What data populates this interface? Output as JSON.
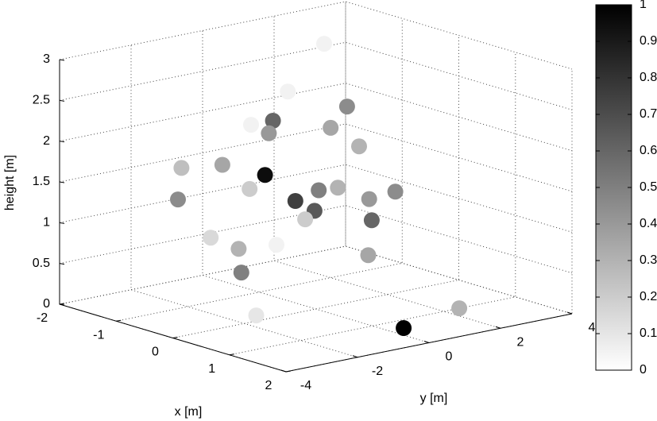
{
  "chart_data": {
    "type": "scatter3d",
    "xlabel": "x [m]",
    "ylabel": "y [m]",
    "zlabel": "height [m]",
    "xlim": [
      -2,
      2
    ],
    "ylim": [
      -4,
      4
    ],
    "zlim": [
      0,
      3
    ],
    "xticks": [
      -2,
      -1,
      0,
      1,
      2
    ],
    "yticks": [
      -4,
      -2,
      0,
      2,
      4
    ],
    "zticks": [
      0,
      0.5,
      1,
      1.5,
      2,
      2.5,
      3
    ],
    "grid": true,
    "colormap": [
      "#ffffff",
      "#000000"
    ],
    "clim": [
      0,
      1
    ],
    "cticks": [
      0,
      0.1,
      0.2,
      0.3,
      0.4,
      0.5,
      0.6,
      0.7,
      0.8,
      0.9,
      1
    ],
    "x": [
      -1.04,
      -1.17,
      0.56,
      -0.1,
      0.72,
      -1.02,
      -1.24,
      0.67,
      -0.27,
      -1.41,
      -0.17,
      0.7,
      -1.57,
      0.1,
      -1.06,
      1.95,
      0.76,
      -0.78,
      1.62,
      -1.11,
      0.78,
      -0.65,
      1.08,
      -1.35,
      0.75,
      -0.38,
      -0.2,
      1.3,
      1.0
    ],
    "y": [
      1.88,
      1.07,
      -0.01,
      -1.04,
      -2.95,
      2.03,
      0.65,
      0.15,
      -3.33,
      -0.38,
      -1.15,
      -2.96,
      -1.37,
      -0.73,
      1.76,
      -2.47,
      0.29,
      3.46,
      -2.6,
      1.46,
      0.33,
      -1.91,
      -2.81,
      -0.02,
      0.28,
      -1.48,
      -1.35,
      0.4,
      2.43
    ],
    "z": [
      2.87,
      2.33,
      2.6,
      2.38,
      2.67,
      1.83,
      1.84,
      2.12,
      1.97,
      1.51,
      1.71,
      1.88,
      1.14,
      1.41,
      1.08,
      2.11,
      1.48,
      0.97,
      1.77,
      0.74,
      1.22,
      0.91,
      1.26,
      0.46,
      0.79,
      0.5,
      0,
      0,
      0
    ],
    "c": [
      0.05,
      0.05,
      0.45,
      0.6,
      0.05,
      0.35,
      0.4,
      0.3,
      0.25,
      0.35,
      0.95,
      0.2,
      0.45,
      0.75,
      0.5,
      0.3,
      0.4,
      0.45,
      0.65,
      0.2,
      0.6,
      0.15,
      0.05,
      0.3,
      0.35,
      0.5,
      0.1,
      1.0,
      0.3
    ]
  }
}
